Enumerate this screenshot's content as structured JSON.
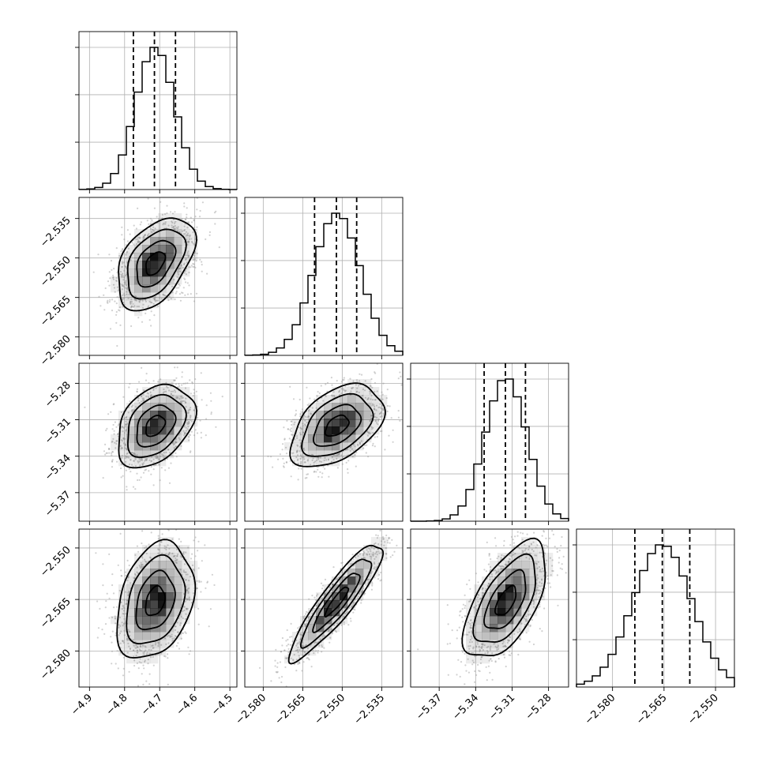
{
  "chart_data": {
    "type": "corner",
    "grid": true,
    "params": [
      {
        "mean": -4.713,
        "sd": 0.055,
        "range": [
          -4.93,
          -4.48
        ],
        "ticks": [
          -4.9,
          -4.8,
          -4.7,
          -4.6,
          -4.5
        ],
        "tick_labels": [
          "−4.9",
          "−4.8",
          "−4.7",
          "−4.6",
          "−4.5"
        ],
        "quantiles": [
          -4.775,
          -4.715,
          -4.655
        ]
      },
      {
        "mean": -2.552,
        "sd": 0.0088,
        "range": [
          -2.587,
          -2.527
        ],
        "ticks": [
          -2.58,
          -2.565,
          -2.55,
          -2.535
        ],
        "tick_labels": [
          "−2.580",
          "−2.565",
          "−2.550",
          "−2.535"
        ],
        "quantiles": [
          -2.5605,
          -2.5522,
          -2.5445
        ]
      },
      {
        "mean": -5.315,
        "sd": 0.017,
        "range": [
          -5.3935,
          -5.2635
        ],
        "ticks": [
          -5.37,
          -5.34,
          -5.31,
          -5.28
        ],
        "tick_labels": [
          "−5.37",
          "−5.34",
          "−5.31",
          "−5.28"
        ],
        "quantiles": [
          -5.333,
          -5.3155,
          -5.299
        ]
      },
      {
        "mean": -2.5655,
        "sd": 0.0085,
        "range": [
          -2.5905,
          -2.5445
        ],
        "ticks": [
          -2.58,
          -2.565,
          -2.55
        ],
        "tick_labels": [
          "−2.580",
          "−2.565",
          "−2.550"
        ],
        "quantiles": [
          -2.5735,
          -2.5655,
          -2.5575
        ]
      }
    ],
    "correlations": {
      "1-0": 0.45,
      "2-0": 0.35,
      "2-1": 0.45,
      "3-0": 0.3,
      "3-1": 0.9,
      "3-2": 0.6
    },
    "contour_levels_sigma": [
      0.5,
      1.0,
      1.5,
      2.0
    ],
    "colors": {
      "contour": "#000000",
      "density": "#000000",
      "points": "#9a9a9a",
      "grid": "#b0b0b0"
    }
  }
}
